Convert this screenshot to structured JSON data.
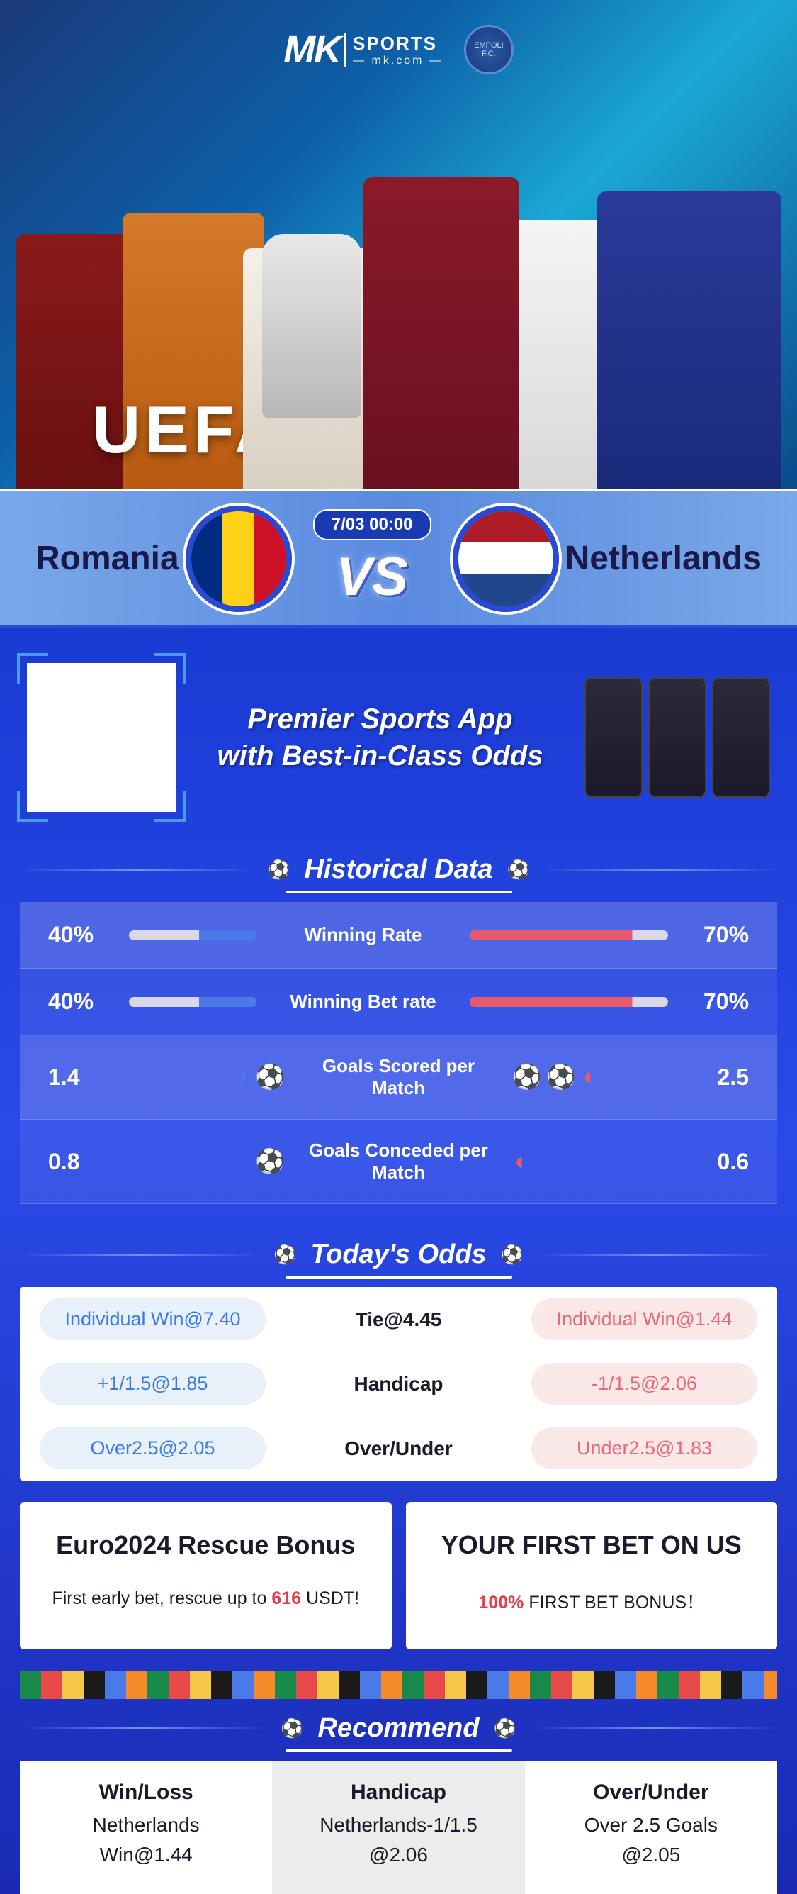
{
  "hero": {
    "brand": "MK",
    "brand_sub": "SPORTS",
    "brand_domain": "— mk.com —",
    "badge_text": "EMPOLI F.C.",
    "title": "UEFA EURO 2024"
  },
  "match": {
    "team_a": "Romania",
    "team_b": "Netherlands",
    "datetime": "7/03 00:00",
    "vs": "VS",
    "flag_a_colors": [
      "#002b7f",
      "#fcd116",
      "#ce1126"
    ],
    "flag_b_colors": [
      "#ae1c28",
      "#ffffff",
      "#21468b"
    ]
  },
  "promo": {
    "line1": "Premier Sports App",
    "line2": "with Best-in-Class Odds"
  },
  "sections": {
    "historical": "Historical Data",
    "odds": "Today's Odds",
    "recommend": "Recommend"
  },
  "historical": {
    "rows": [
      {
        "label": "Winning Rate",
        "left_value": "40%",
        "right_value": "70%",
        "left_pct": 40,
        "right_pct": 70,
        "type": "bar"
      },
      {
        "label": "Winning Bet rate",
        "left_value": "40%",
        "right_value": "70%",
        "left_pct": 40,
        "right_pct": 70,
        "type": "bar"
      },
      {
        "label": "Goals Scored per Match",
        "left_value": "1.4",
        "right_value": "2.5",
        "left_balls": 1.4,
        "right_balls": 2.5,
        "type": "balls"
      },
      {
        "label": "Goals Conceded per Match",
        "left_value": "0.8",
        "right_value": "0.6",
        "left_balls": 0.8,
        "right_balls": 0.6,
        "type": "balls"
      }
    ],
    "colors": {
      "left": "#4a7ae8",
      "right": "#e85a6a",
      "bar_bg": "#d8d8e8"
    }
  },
  "odds": {
    "rows": [
      {
        "left": "Individual Win@7.40",
        "center": "Tie@4.45",
        "right": "Individual Win@1.44"
      },
      {
        "left": "+1/1.5@1.85",
        "center": "Handicap",
        "right": "-1/1.5@2.06"
      },
      {
        "left": "Over2.5@2.05",
        "center": "Over/Under",
        "right": "Under2.5@1.83"
      }
    ],
    "colors": {
      "left_pill_bg": "#e8f0fa",
      "left_pill_fg": "#3a7ae8",
      "right_pill_bg": "#fae8e8",
      "right_pill_fg": "#e86a7a"
    }
  },
  "bonus": {
    "card1": {
      "title": "Euro2024 Rescue Bonus",
      "sub_pre": "First early bet, rescue up to ",
      "sub_accent": "616",
      "sub_post": " USDT!"
    },
    "card2": {
      "title": "YOUR FIRST BET ON US",
      "sub_accent": "100%",
      "sub_post": " FIRST BET BONUS！"
    }
  },
  "recommend": {
    "cols": [
      {
        "h": "Win/Loss",
        "l1": "Netherlands",
        "l2": "Win@1.44"
      },
      {
        "h": "Handicap",
        "l1": "Netherlands-1/1.5",
        "l2": "@2.06"
      },
      {
        "h": "Over/Under",
        "l1": "Over 2.5 Goals",
        "l2": "@2.05"
      }
    ]
  }
}
